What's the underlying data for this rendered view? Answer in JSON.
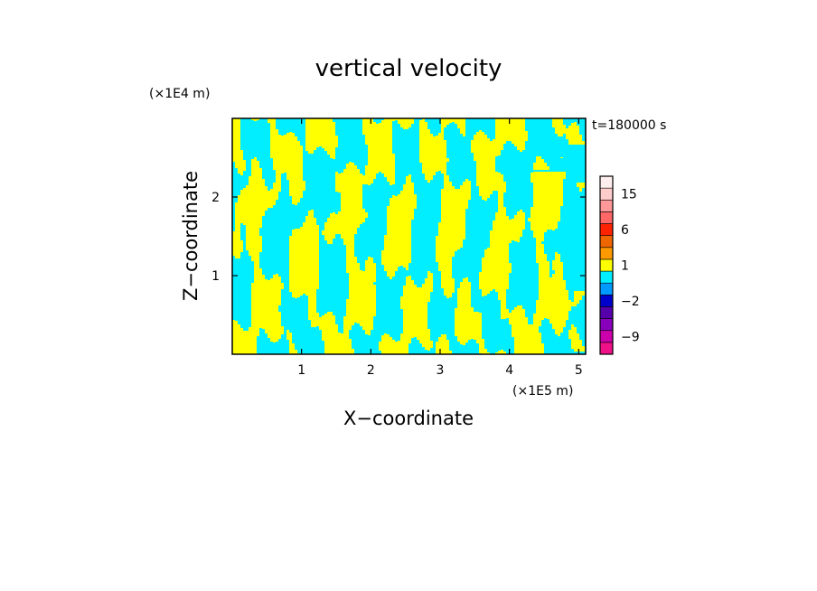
{
  "chart_data": {
    "type": "heatmap",
    "title": "vertical velocity",
    "xlabel": "X−coordinate",
    "ylabel": "Z−coordinate",
    "x_unit": "(×1E5 m)",
    "y_unit": "(×1E4 m)",
    "time_label": "t=180000 s",
    "xlim": [
      0,
      5.1
    ],
    "ylim": [
      0,
      3.0
    ],
    "x_ticks": [
      {
        "value": 1,
        "label": "1"
      },
      {
        "value": 2,
        "label": "2"
      },
      {
        "value": 3,
        "label": "3"
      },
      {
        "value": 4,
        "label": "4"
      },
      {
        "value": 5,
        "label": "5"
      }
    ],
    "y_ticks": [
      {
        "value": 1,
        "label": "1"
      },
      {
        "value": 2,
        "label": "2"
      }
    ],
    "field_colors": {
      "positive": "#ffff00",
      "negative": "#00eeff"
    },
    "colorbar": {
      "levels": [
        -12,
        -9,
        -6,
        -4,
        -2,
        -1,
        0,
        1,
        2,
        4,
        6,
        9,
        12,
        15,
        18,
        21
      ],
      "colors": [
        "#ee1188",
        "#cc00aa",
        "#8800bb",
        "#5500aa",
        "#0000cc",
        "#0099ff",
        "#00eeff",
        "#ffff00",
        "#ff9900",
        "#ee6600",
        "#ff2200",
        "#ff6666",
        "#ff9999",
        "#ffcccc",
        "#ffeeee"
      ],
      "labels": [
        {
          "value": 15,
          "label": "15"
        },
        {
          "value": 6,
          "label": "6"
        },
        {
          "value": 1,
          "label": "1"
        },
        {
          "value": -2,
          "label": "−2"
        },
        {
          "value": -9,
          "label": "−9"
        }
      ]
    }
  }
}
